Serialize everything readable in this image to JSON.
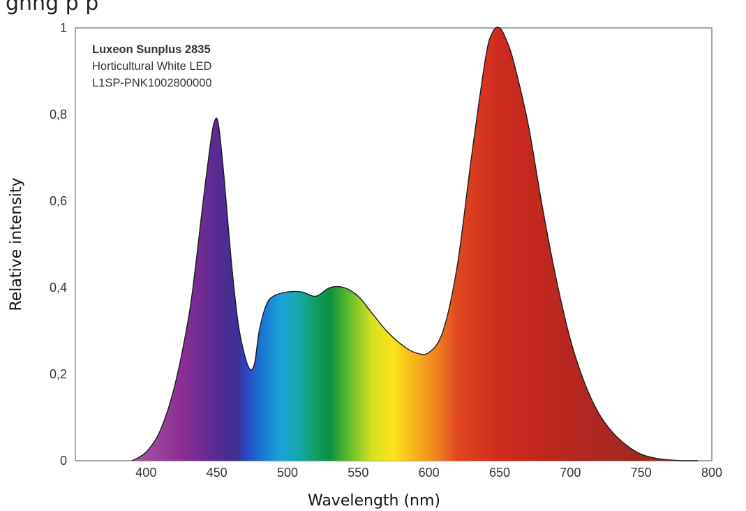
{
  "page": {
    "cropped_heading": "gnng p p"
  },
  "chart_data": {
    "type": "area",
    "title": "",
    "xlabel": "Wavelength (nm)",
    "ylabel": "Relative intensity",
    "xlim": [
      350,
      800
    ],
    "ylim": [
      0,
      1
    ],
    "x_ticks": [
      400,
      450,
      500,
      550,
      600,
      650,
      700,
      750,
      800
    ],
    "y_ticks": [
      {
        "value": 0,
        "label": "0"
      },
      {
        "value": 0.2,
        "label": "0,2"
      },
      {
        "value": 0.4,
        "label": "0,4"
      },
      {
        "value": 0.6,
        "label": "0,6"
      },
      {
        "value": 0.8,
        "label": "0,8"
      },
      {
        "value": 1,
        "label": "1"
      }
    ],
    "grid": false,
    "fill": "visible-spectrum gradient",
    "annotation": [
      "Luxeon Sunplus 2835",
      "Horticultural White LED",
      "L1SP-PNK1002800000"
    ],
    "series": [
      {
        "x": [
          390,
          400,
          410,
          420,
          430,
          435,
          440,
          445,
          448,
          451,
          455,
          460,
          465,
          470,
          474,
          477,
          480,
          485,
          490,
          500,
          510,
          520,
          530,
          540,
          550,
          560,
          570,
          580,
          590,
          600,
          610,
          620,
          630,
          640,
          645,
          650,
          655,
          660,
          670,
          680,
          690,
          700,
          710,
          720,
          730,
          740,
          750,
          760,
          770,
          780,
          790
        ],
        "y": [
          0.0,
          0.02,
          0.07,
          0.17,
          0.33,
          0.45,
          0.59,
          0.72,
          0.78,
          0.78,
          0.66,
          0.47,
          0.32,
          0.24,
          0.21,
          0.23,
          0.3,
          0.36,
          0.38,
          0.39,
          0.39,
          0.38,
          0.4,
          0.4,
          0.38,
          0.34,
          0.3,
          0.27,
          0.25,
          0.25,
          0.3,
          0.45,
          0.7,
          0.93,
          0.99,
          1.0,
          0.97,
          0.92,
          0.78,
          0.59,
          0.42,
          0.28,
          0.18,
          0.11,
          0.065,
          0.035,
          0.015,
          0.006,
          0.002,
          0.0,
          0.0
        ]
      }
    ],
    "colors": {
      "outline": "#1a1a1a",
      "frame": "#888888",
      "spectrum_stops": [
        {
          "nm": 390,
          "color": "#a35ca0"
        },
        {
          "nm": 425,
          "color": "#8b2e93"
        },
        {
          "nm": 450,
          "color": "#5a2a92"
        },
        {
          "nm": 465,
          "color": "#3b2f95"
        },
        {
          "nm": 470,
          "color": "#2b43c1"
        },
        {
          "nm": 480,
          "color": "#1b6fd0"
        },
        {
          "nm": 495,
          "color": "#1aa3db"
        },
        {
          "nm": 510,
          "color": "#12a8a0"
        },
        {
          "nm": 520,
          "color": "#0f9e62"
        },
        {
          "nm": 530,
          "color": "#0c9040"
        },
        {
          "nm": 545,
          "color": "#6bc02a"
        },
        {
          "nm": 560,
          "color": "#d8e020"
        },
        {
          "nm": 575,
          "color": "#fbe31c"
        },
        {
          "nm": 590,
          "color": "#f7b31b"
        },
        {
          "nm": 605,
          "color": "#f08420"
        },
        {
          "nm": 620,
          "color": "#e0471f"
        },
        {
          "nm": 650,
          "color": "#cf2a1e"
        },
        {
          "nm": 700,
          "color": "#b6271f"
        },
        {
          "nm": 760,
          "color": "#9b2a22"
        },
        {
          "nm": 790,
          "color": "#8c2a24"
        }
      ]
    }
  }
}
